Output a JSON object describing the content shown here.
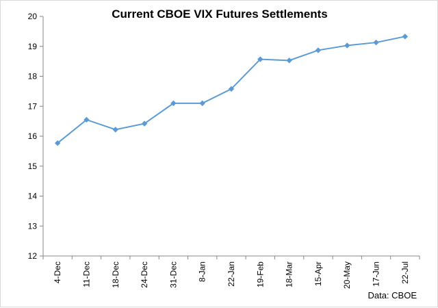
{
  "chart_data": {
    "type": "line",
    "title": "Current CBOE VIX Futures Settlements",
    "source_note": "Data: CBOE",
    "categories": [
      "4-Dec",
      "11-Dec",
      "18-Dec",
      "24-Dec",
      "31-Dec",
      "8-Jan",
      "22-Jan",
      "19-Feb",
      "18-Mar",
      "15-Apr",
      "20-May",
      "17-Jun",
      "22-Jul"
    ],
    "series": [
      {
        "values": [
          15.77,
          16.55,
          16.22,
          16.42,
          17.1,
          17.1,
          17.58,
          18.57,
          18.53,
          18.87,
          19.03,
          19.13,
          19.33
        ]
      }
    ],
    "ylim": [
      12,
      20
    ],
    "yticks": [
      "12",
      "13",
      "14",
      "15",
      "16",
      "17",
      "18",
      "19",
      "20"
    ],
    "grid": false,
    "legend": "none",
    "line_color": "#5b9bd5",
    "axis_color": "#868686",
    "marker": "diamond-icon"
  }
}
